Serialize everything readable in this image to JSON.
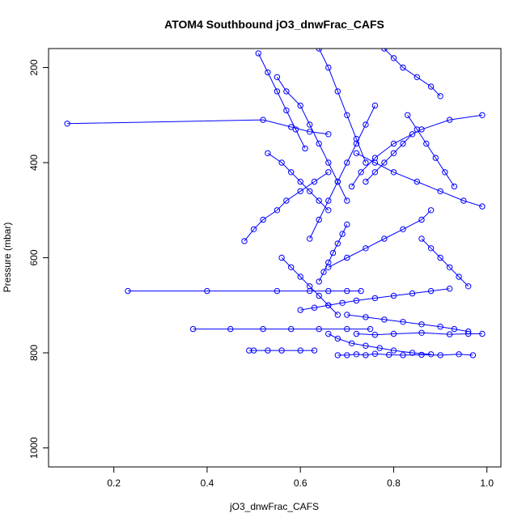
{
  "chart_data": {
    "type": "line",
    "title": "ATOM4 Southbound jO3_dnwFrac_CAFS",
    "xlabel": "jO3_dnwFrac_CAFS",
    "ylabel": "Pressure (mbar)",
    "xlim": [
      0.06,
      1.03
    ],
    "ylim": [
      1040,
      160
    ],
    "y_reversed": true,
    "grid": false,
    "legend": "none",
    "x_ticks": [
      0.2,
      0.4,
      0.6,
      0.8,
      1.0
    ],
    "x_tick_labels": [
      "0.2",
      "0.4",
      "0.6",
      "0.8",
      "1.0"
    ],
    "y_ticks": [
      200,
      400,
      600,
      800,
      1000
    ],
    "y_tick_labels": [
      "200",
      "400",
      "600",
      "800",
      "1000"
    ],
    "marker": "open-circle",
    "colors": {
      "series": "#0000ff",
      "axis": "#000000",
      "background": "#ffffff"
    },
    "series": [
      {
        "x": [
          0.1,
          0.52,
          0.58,
          0.62,
          0.66
        ],
        "y": [
          318,
          310,
          325,
          335,
          340
        ]
      },
      {
        "x": [
          0.23,
          0.4,
          0.55,
          0.62,
          0.66,
          0.7,
          0.73
        ],
        "y": [
          670,
          670,
          670,
          670,
          670,
          670,
          670
        ]
      },
      {
        "x": [
          0.37,
          0.45,
          0.52,
          0.58,
          0.64,
          0.7,
          0.75
        ],
        "y": [
          750,
          750,
          750,
          750,
          750,
          750,
          750
        ]
      },
      {
        "x": [
          0.49,
          0.5,
          0.53,
          0.56,
          0.6,
          0.63
        ],
        "y": [
          795,
          795,
          795,
          795,
          795,
          795
        ]
      },
      {
        "x": [
          0.48,
          0.5,
          0.52,
          0.55,
          0.57,
          0.6,
          0.63,
          0.66
        ],
        "y": [
          565,
          540,
          520,
          500,
          480,
          460,
          440,
          420
        ]
      },
      {
        "x": [
          0.72,
          0.76,
          0.8,
          0.86,
          0.92,
          0.96,
          0.99
        ],
        "y": [
          760,
          762,
          760,
          758,
          761,
          760,
          760
        ]
      },
      {
        "x": [
          0.68,
          0.7,
          0.72,
          0.74,
          0.76,
          0.79,
          0.82,
          0.86,
          0.9,
          0.94,
          0.97
        ],
        "y": [
          805,
          805,
          803,
          805,
          802,
          804,
          805,
          804,
          805,
          803,
          805
        ]
      },
      {
        "x": [
          0.99,
          0.92,
          0.86,
          0.8,
          0.76,
          0.73,
          0.71
        ],
        "y": [
          300,
          310,
          330,
          360,
          390,
          420,
          450
        ]
      },
      {
        "x": [
          0.99,
          0.95,
          0.9,
          0.85,
          0.8,
          0.76,
          0.72
        ],
        "y": [
          492,
          480,
          460,
          440,
          420,
          400,
          380
        ]
      },
      {
        "x": [
          0.55,
          0.57,
          0.6,
          0.62,
          0.64,
          0.66,
          0.68,
          0.7
        ],
        "y": [
          220,
          250,
          280,
          320,
          360,
          400,
          440,
          480
        ]
      },
      {
        "x": [
          0.62,
          0.64,
          0.66,
          0.68,
          0.7,
          0.72,
          0.74,
          0.76
        ],
        "y": [
          560,
          520,
          480,
          440,
          400,
          360,
          320,
          280
        ]
      },
      {
        "x": [
          0.66,
          0.7,
          0.74,
          0.78,
          0.82,
          0.86,
          0.88
        ],
        "y": [
          620,
          600,
          580,
          560,
          540,
          520,
          500
        ]
      },
      {
        "x": [
          0.6,
          0.63,
          0.66,
          0.69,
          0.72,
          0.76,
          0.8,
          0.84,
          0.88,
          0.92
        ],
        "y": [
          710,
          705,
          700,
          695,
          690,
          685,
          680,
          675,
          670,
          665
        ]
      },
      {
        "x": [
          0.64,
          0.66,
          0.68,
          0.7,
          0.72,
          0.74
        ],
        "y": [
          160,
          200,
          250,
          300,
          350,
          400
        ]
      },
      {
        "x": [
          0.78,
          0.8,
          0.82,
          0.85,
          0.88,
          0.9
        ],
        "y": [
          160,
          180,
          200,
          220,
          240,
          260
        ]
      },
      {
        "x": [
          0.53,
          0.56,
          0.58,
          0.6,
          0.62,
          0.64,
          0.66
        ],
        "y": [
          380,
          400,
          420,
          440,
          460,
          480,
          500
        ]
      },
      {
        "x": [
          0.86,
          0.88,
          0.9,
          0.92,
          0.94,
          0.96
        ],
        "y": [
          560,
          580,
          600,
          620,
          640,
          660
        ]
      },
      {
        "x": [
          0.7,
          0.74,
          0.78,
          0.82,
          0.86,
          0.9,
          0.93,
          0.96
        ],
        "y": [
          720,
          725,
          730,
          735,
          740,
          745,
          750,
          755
        ]
      },
      {
        "x": [
          0.56,
          0.58,
          0.6,
          0.62,
          0.64,
          0.66,
          0.68
        ],
        "y": [
          600,
          620,
          640,
          660,
          680,
          700,
          720
        ]
      },
      {
        "x": [
          0.74,
          0.76,
          0.78,
          0.8,
          0.82,
          0.84
        ],
        "y": [
          440,
          420,
          400,
          380,
          360,
          340
        ]
      },
      {
        "x": [
          0.83,
          0.85,
          0.87,
          0.89,
          0.91,
          0.93
        ],
        "y": [
          300,
          330,
          360,
          390,
          420,
          450
        ]
      },
      {
        "x": [
          0.51,
          0.53,
          0.55,
          0.57,
          0.59,
          0.61
        ],
        "y": [
          170,
          210,
          250,
          290,
          330,
          370
        ]
      },
      {
        "x": [
          0.66,
          0.68,
          0.71,
          0.74,
          0.77,
          0.8,
          0.84,
          0.88
        ],
        "y": [
          760,
          770,
          780,
          785,
          790,
          795,
          800,
          803
        ]
      },
      {
        "x": [
          0.64,
          0.65,
          0.66,
          0.67,
          0.68,
          0.69,
          0.7
        ],
        "y": [
          650,
          630,
          610,
          590,
          570,
          550,
          530
        ]
      }
    ]
  }
}
